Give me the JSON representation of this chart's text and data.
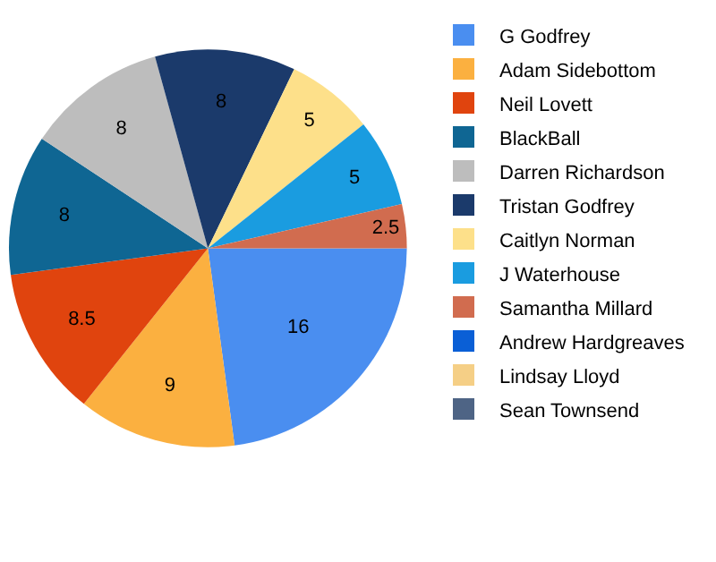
{
  "chart_data": {
    "type": "pie",
    "categories": [
      "G Godfrey",
      "Adam Sidebottom",
      "Neil Lovett",
      "BlackBall",
      "Darren Richardson",
      "Tristan Godfrey",
      "Caitlyn Norman",
      "J Waterhouse",
      "Samantha Millard",
      "Andrew Hardgreaves",
      "Lindsay Lloyd",
      "Sean Townsend"
    ],
    "values": [
      16,
      9,
      8.5,
      8,
      8,
      8,
      5,
      5,
      2.5,
      0,
      0,
      0
    ],
    "colors": [
      "#4a8ef0",
      "#fbb040",
      "#e0440e",
      "#0f6693",
      "#bdbdbd",
      "#1b3a6b",
      "#fde08a",
      "#1a9ce0",
      "#d16c4f",
      "#0a5fd6",
      "#f5cf86",
      "#4e6485"
    ],
    "data_labels": true,
    "legend": "top right"
  }
}
